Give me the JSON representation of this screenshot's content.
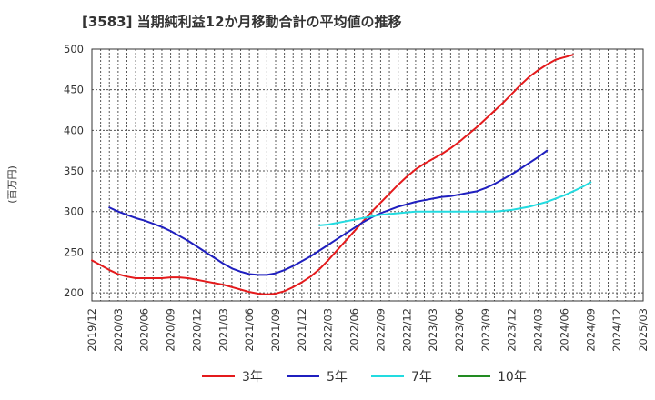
{
  "title": "[3583]  当期純利益12か月移動合計の平均値の推移",
  "chart_data": {
    "type": "line",
    "title": "[3583]  当期純利益12か月移動合計の平均値の推移",
    "ylabel": "(百万円)",
    "xlabel": "",
    "ylim": [
      190,
      500
    ],
    "yticks": [
      200,
      250,
      300,
      350,
      400,
      450,
      500
    ],
    "x_tick_labels": [
      "2019/12",
      "2020/03",
      "2020/06",
      "2020/09",
      "2020/12",
      "2021/03",
      "2021/06",
      "2021/09",
      "2021/12",
      "2022/03",
      "2022/06",
      "2022/09",
      "2022/12",
      "2023/03",
      "2023/06",
      "2023/09",
      "2023/12",
      "2024/03",
      "2024/06",
      "2024/09",
      "2024/12",
      "2025/03"
    ],
    "grid": true,
    "legend_position": "bottom",
    "series": [
      {
        "name": "3年",
        "color": "#e41a1c",
        "start": "2019/12",
        "values": [
          240,
          234,
          228,
          223,
          220,
          218,
          218,
          218,
          218,
          219,
          219,
          218,
          216,
          214,
          212,
          210,
          207,
          204,
          201,
          199,
          198,
          199,
          202,
          207,
          213,
          220,
          229,
          240,
          252,
          264,
          276,
          288,
          300,
          311,
          322,
          333,
          343,
          352,
          359,
          365,
          371,
          378,
          386,
          395,
          404,
          414,
          424,
          434,
          445,
          456,
          466,
          474,
          481,
          487,
          490,
          493
        ]
      },
      {
        "name": "5年",
        "color": "#1f1fbf",
        "start": "2020/02",
        "values": [
          305,
          300,
          296,
          292,
          289,
          285,
          281,
          276,
          270,
          264,
          257,
          250,
          243,
          236,
          230,
          226,
          223,
          222,
          222,
          224,
          228,
          233,
          239,
          245,
          252,
          259,
          266,
          273,
          280,
          287,
          293,
          298,
          302,
          306,
          309,
          312,
          314,
          316,
          318,
          319,
          321,
          323,
          325,
          329,
          334,
          340,
          346,
          353,
          360,
          367,
          375
        ]
      },
      {
        "name": "7年",
        "color": "#22dbe0",
        "start": "2022/02",
        "values": [
          283,
          284,
          286,
          288,
          290,
          292,
          294,
          296,
          297,
          298,
          299,
          300,
          300,
          300,
          300,
          300,
          300,
          300,
          300,
          300,
          300,
          301,
          302,
          304,
          306,
          309,
          312,
          316,
          320,
          325,
          330,
          336
        ]
      },
      {
        "name": "10年",
        "color": "#228b22",
        "start": "2025/03",
        "values": []
      }
    ]
  }
}
